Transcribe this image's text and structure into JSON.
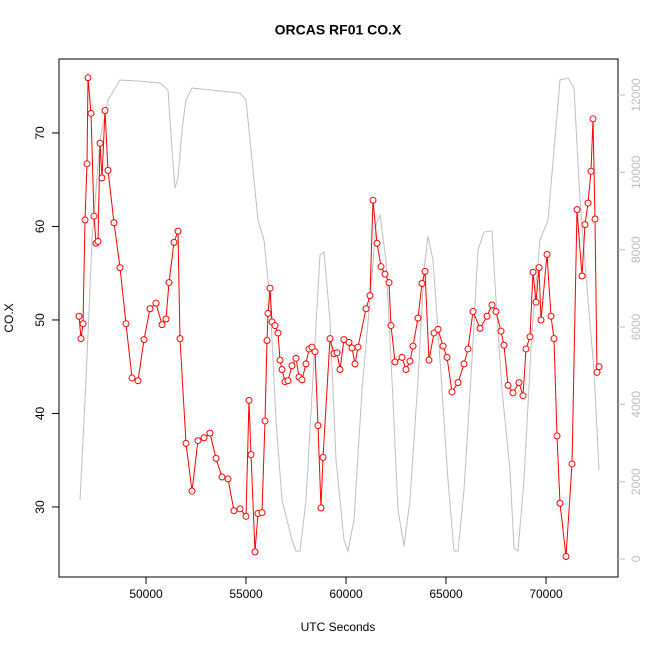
{
  "chart_data": {
    "type": "line",
    "title": "ORCAS RF01 CO.X",
    "x_label": "UTC Seconds",
    "y_label": "CO.X",
    "xlim": [
      45650,
      73600
    ],
    "xticks": [
      50000,
      55000,
      60000,
      65000,
      70000
    ],
    "ylim": [
      22.51,
      77.91
    ],
    "yticks": [
      30,
      40,
      50,
      60,
      70
    ],
    "y2lim": [
      -465,
      12931
    ],
    "y2ticks": [
      0,
      2000,
      4000,
      6000,
      8000,
      10000,
      12000
    ],
    "y2_tick_color": "#bebebe",
    "series": [
      {
        "color": "#bebebe",
        "axis": "y2",
        "markers": false,
        "x": [
          46700,
          47000,
          47300,
          47700,
          48100,
          48700,
          49700,
          50700,
          51100,
          51300,
          51450,
          51600,
          51800,
          52000,
          52300,
          53200,
          54700,
          55000,
          55300,
          55600,
          55900,
          56200,
          56500,
          56800,
          57300,
          57500,
          57700,
          58000,
          58400,
          58700,
          58900,
          59200,
          59500,
          59900,
          60100,
          60400,
          60800,
          61200,
          61500,
          61700,
          62000,
          62300,
          62600,
          62900,
          63200,
          63600,
          63900,
          64100,
          64350,
          64700,
          65100,
          65400,
          65600,
          65900,
          66300,
          66600,
          66900,
          67300,
          67500,
          67800,
          68200,
          68400,
          68600,
          68900,
          69300,
          69700,
          70100,
          70400,
          70700,
          71100,
          71400,
          71700,
          72100,
          72400,
          72650
        ],
        "values": [
          1526,
          4629,
          8250,
          10835,
          11870,
          12387,
          12360,
          12310,
          12130,
          10577,
          9594,
          9853,
          11094,
          11870,
          12180,
          12128,
          12050,
          11870,
          10318,
          8767,
          8250,
          6698,
          3594,
          1526,
          491,
          207,
          207,
          1526,
          5146,
          7861,
          7939,
          6180,
          2560,
          491,
          207,
          1009,
          4370,
          6698,
          8637,
          8896,
          7732,
          4629,
          1267,
          336,
          1526,
          4629,
          7473,
          8353,
          7732,
          5146,
          2043,
          207,
          207,
          1784,
          5146,
          7991,
          8456,
          8482,
          6698,
          4370,
          2302,
          284,
          207,
          2043,
          5922,
          8250,
          8767,
          10577,
          12387,
          12439,
          12180,
          9284,
          6698,
          4888,
          2302
        ]
      },
      {
        "color": "#ff0000",
        "markers": true,
        "x": [
          46650,
          46750,
          46850,
          46950,
          47050,
          47100,
          47250,
          47400,
          47500,
          47600,
          47700,
          47800,
          47950,
          48100,
          48400,
          48700,
          49000,
          49300,
          49600,
          49900,
          50200,
          50500,
          50800,
          51000,
          51150,
          51400,
          51600,
          51700,
          52000,
          52300,
          52600,
          52900,
          53200,
          53500,
          53800,
          54100,
          54400,
          54700,
          55000,
          55150,
          55250,
          55450,
          55600,
          55800,
          55950,
          56050,
          56100,
          56200,
          56300,
          56450,
          56600,
          56700,
          56800,
          56950,
          57100,
          57300,
          57500,
          57650,
          57800,
          58000,
          58150,
          58300,
          58450,
          58600,
          58750,
          58850,
          59200,
          59400,
          59550,
          59700,
          59900,
          60150,
          60300,
          60450,
          60600,
          61000,
          61200,
          61350,
          61550,
          61750,
          61950,
          62150,
          62250,
          62450,
          62800,
          63000,
          63200,
          63350,
          63600,
          63800,
          63950,
          64150,
          64400,
          64600,
          64850,
          65050,
          65300,
          65600,
          65900,
          66100,
          66350,
          66700,
          67050,
          67300,
          67500,
          67750,
          67900,
          68100,
          68350,
          68650,
          68850,
          69000,
          69200,
          69350,
          69500,
          69650,
          69750,
          70050,
          70250,
          70400,
          70550,
          70700,
          71000,
          71300,
          71550,
          71800,
          71950,
          72100,
          72250,
          72350,
          72450,
          72550,
          72650
        ],
        "values": [
          50.4,
          48.0,
          49.6,
          60.7,
          66.7,
          75.9,
          72.1,
          61.1,
          58.2,
          58.4,
          68.9,
          65.2,
          72.4,
          66.0,
          60.4,
          55.6,
          49.6,
          43.8,
          43.5,
          47.9,
          51.2,
          51.8,
          49.5,
          50.1,
          54.0,
          58.3,
          59.5,
          48.0,
          36.8,
          31.7,
          37.1,
          37.4,
          37.9,
          35.2,
          33.2,
          33.0,
          29.6,
          29.8,
          29.0,
          41.4,
          35.6,
          25.2,
          29.3,
          29.4,
          39.2,
          47.8,
          50.7,
          53.4,
          49.8,
          49.4,
          48.6,
          45.7,
          44.7,
          43.4,
          43.5,
          45.1,
          45.9,
          43.9,
          43.6,
          45.3,
          46.9,
          47.1,
          46.6,
          38.7,
          29.9,
          35.3,
          48.0,
          46.4,
          46.5,
          44.7,
          47.9,
          47.6,
          47.0,
          45.3,
          47.1,
          51.2,
          52.6,
          62.8,
          58.2,
          55.7,
          54.9,
          54.0,
          49.4,
          45.5,
          46.0,
          44.7,
          45.6,
          47.2,
          50.2,
          53.9,
          55.2,
          45.7,
          48.6,
          49.0,
          47.2,
          46.0,
          42.3,
          43.3,
          45.3,
          46.9,
          50.9,
          49.1,
          50.4,
          51.6,
          50.9,
          48.8,
          47.3,
          43.0,
          42.2,
          43.3,
          41.9,
          46.9,
          48.2,
          55.1,
          51.9,
          55.6,
          50.0,
          57.0,
          50.4,
          48.0,
          37.6,
          30.4,
          24.7,
          34.6,
          61.8,
          54.7,
          60.2,
          62.5,
          65.9,
          71.5,
          60.8,
          44.4,
          45.0
        ]
      }
    ]
  }
}
